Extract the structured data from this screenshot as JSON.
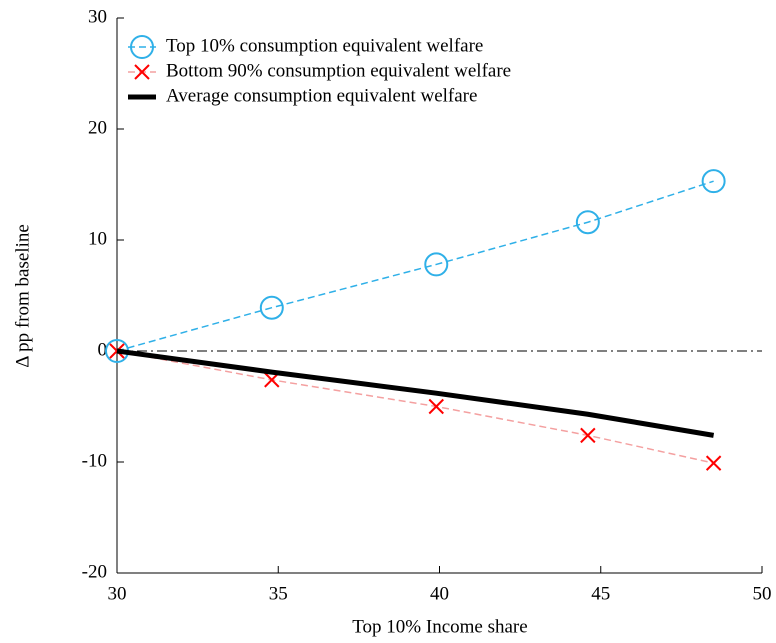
{
  "chart_data": {
    "type": "line",
    "x_label": "Top 10% Income share",
    "y_label": "Δ pp from baseline",
    "xlim": [
      30,
      50
    ],
    "ylim": [
      -20,
      30
    ],
    "xticks": [
      30,
      35,
      40,
      45,
      50
    ],
    "yticks": [
      -20,
      -10,
      0,
      10,
      20,
      30
    ],
    "reference_line": 0,
    "legend": "upper left",
    "x": [
      30,
      34.8,
      39.9,
      44.6,
      48.5
    ],
    "series": [
      {
        "name": "Top 10% consumption equivalent welfare",
        "color": "#2fb0e8",
        "marker": "circle",
        "dash": "dashed",
        "values": [
          0,
          3.9,
          7.8,
          11.6,
          15.3
        ]
      },
      {
        "name": "Bottom 90% consumption equivalent welfare",
        "color": "#ff0000",
        "line_color": "#f4a0a0",
        "marker": "x",
        "dash": "dashed",
        "values": [
          0,
          -2.6,
          -5.0,
          -7.6,
          -10.1
        ]
      },
      {
        "name": "Average consumption equivalent welfare",
        "color": "#000000",
        "marker": "none",
        "dash": "solid",
        "values": [
          0,
          -1.9,
          -3.8,
          -5.7,
          -7.6
        ]
      }
    ]
  }
}
